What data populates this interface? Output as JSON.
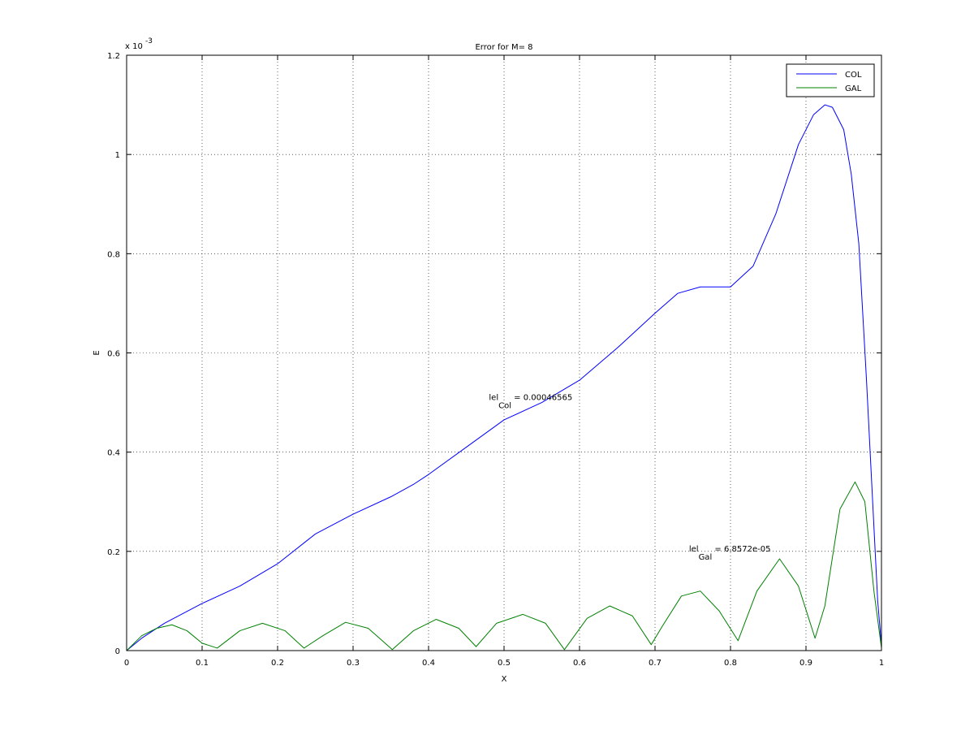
{
  "chart_data": {
    "type": "line",
    "title": "Error for M= 8",
    "xlabel": "X",
    "ylabel": "E",
    "y_exponent_label": "x 10",
    "y_exponent_power": "-3",
    "xlim": [
      0,
      1
    ],
    "ylim": [
      0,
      1.2
    ],
    "xticks": [
      0,
      0.1,
      0.2,
      0.3,
      0.4,
      0.5,
      0.6,
      0.7,
      0.8,
      0.9,
      1
    ],
    "xtick_labels": [
      "0",
      "0.1",
      "0.2",
      "0.3",
      "0.4",
      "0.5",
      "0.6",
      "0.7",
      "0.8",
      "0.9",
      "1"
    ],
    "yticks": [
      0,
      0.2,
      0.4,
      0.6,
      0.8,
      1,
      1.2
    ],
    "ytick_labels": [
      "0",
      "0.2",
      "0.4",
      "0.6",
      "0.8",
      "1",
      "1.2"
    ],
    "grid": true,
    "legend_position": "top-right",
    "series": [
      {
        "name": "COL",
        "color": "#0000ff",
        "x": [
          0,
          0.02,
          0.05,
          0.1,
          0.15,
          0.2,
          0.25,
          0.3,
          0.35,
          0.38,
          0.4,
          0.45,
          0.5,
          0.55,
          0.6,
          0.65,
          0.7,
          0.73,
          0.76,
          0.8,
          0.83,
          0.86,
          0.89,
          0.91,
          0.925,
          0.935,
          0.95,
          0.96,
          0.97,
          0.98,
          0.99,
          0.995,
          1
        ],
        "y": [
          0,
          0.025,
          0.055,
          0.095,
          0.13,
          0.175,
          0.235,
          0.275,
          0.31,
          0.335,
          0.355,
          0.41,
          0.465,
          0.5,
          0.545,
          0.61,
          0.68,
          0.72,
          0.733,
          0.733,
          0.775,
          0.88,
          1.02,
          1.08,
          1.1,
          1.095,
          1.05,
          0.96,
          0.82,
          0.55,
          0.25,
          0.1,
          0.01
        ]
      },
      {
        "name": "GAL",
        "color": "#008000",
        "x": [
          0,
          0.02,
          0.04,
          0.06,
          0.08,
          0.1,
          0.12,
          0.15,
          0.18,
          0.21,
          0.235,
          0.26,
          0.29,
          0.32,
          0.352,
          0.38,
          0.41,
          0.44,
          0.463,
          0.49,
          0.525,
          0.555,
          0.58,
          0.61,
          0.64,
          0.67,
          0.695,
          0.71,
          0.735,
          0.76,
          0.785,
          0.81,
          0.835,
          0.865,
          0.89,
          0.912,
          0.925,
          0.945,
          0.965,
          0.978,
          0.99,
          1
        ],
        "y": [
          0,
          0.03,
          0.045,
          0.052,
          0.04,
          0.015,
          0.005,
          0.04,
          0.055,
          0.04,
          0.005,
          0.03,
          0.057,
          0.045,
          0.002,
          0.04,
          0.063,
          0.045,
          0.008,
          0.055,
          0.073,
          0.055,
          0.002,
          0.065,
          0.09,
          0.07,
          0.012,
          0.05,
          0.11,
          0.12,
          0.08,
          0.02,
          0.12,
          0.185,
          0.13,
          0.025,
          0.09,
          0.285,
          0.34,
          0.3,
          0.12,
          0.005
        ]
      }
    ],
    "annotations": [
      {
        "prefix": "lel",
        "subscript": "Col",
        "suffix": " = 0.00046565",
        "x": 0.48,
        "y": 0.505
      },
      {
        "prefix": "lel",
        "subscript": "Gal",
        "suffix": " = 6.8572e-05",
        "x": 0.745,
        "y": 0.2
      }
    ]
  }
}
